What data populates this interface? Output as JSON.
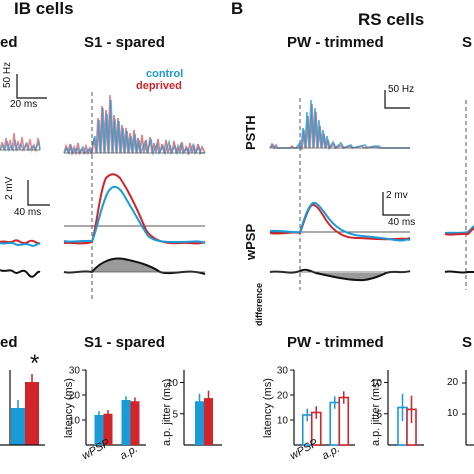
{
  "panel_a": {
    "title": "IB cells",
    "left_title_fragment": "ed",
    "spared_title": "S1 - spared",
    "legend": {
      "control": "control",
      "deprived": "deprived"
    },
    "hz_scale": "50 Hz",
    "ms_scale_psth": "20 ms",
    "mv_scale": "2 mV",
    "ms_scale_wpsp": "40 ms",
    "bottom_title_fragment": "ed",
    "bottom_spared_title": "S1 - spared",
    "significance": "*",
    "latency_label": "latency (ms)",
    "jitter_label": "a.p. jitter (ms)",
    "x_wpsp": "wPSP",
    "x_ap": "a.p.",
    "yticks_latency": [
      "10",
      "20",
      "30"
    ],
    "yticks_jitter": [
      "5",
      "10"
    ],
    "colors": {
      "control": "#1a9ad6",
      "deprived": "#d1252b",
      "difference_fill": "#9a9a9a"
    }
  },
  "panel_b": {
    "letter": "B",
    "title": "RS cells",
    "trimmed_title": "PW - trimmed",
    "right_title_fragment": "S",
    "psth_label": "PSTH",
    "wpsp_label": "wPSP",
    "difference_label": "difference",
    "hz_scale": "50 Hz",
    "mv_scale": "2 mv",
    "ms_scale_wpsp": "40 ms",
    "bottom_trimmed_title": "PW - trimmed",
    "bottom_right_fragment": "S",
    "latency_label": "latency (ms)",
    "jitter_label": "a.p. jitter (ms)",
    "x_wpsp": "wPSP",
    "x_ap": "a.p.",
    "yticks_latency": [
      "10",
      "20",
      "30"
    ],
    "yticks_jitter": [
      "5",
      "10"
    ],
    "yticks_right": [
      "20",
      "10"
    ]
  },
  "chart_data": [
    {
      "type": "bar",
      "panel": "A S1-spared latency",
      "ylabel": "latency (ms)",
      "categories": [
        "wPSP",
        "a.p."
      ],
      "ylim": [
        0,
        30
      ],
      "series": [
        {
          "name": "control",
          "values": [
            12,
            18
          ]
        },
        {
          "name": "deprived",
          "values": [
            12.5,
            17.5
          ]
        }
      ]
    },
    {
      "type": "bar",
      "panel": "A S1-spared jitter",
      "ylabel": "a.p. jitter (ms)",
      "categories": [
        ""
      ],
      "ylim": [
        0,
        12
      ],
      "series": [
        {
          "name": "control",
          "values": [
            7
          ]
        },
        {
          "name": "deprived",
          "values": [
            7.5
          ]
        }
      ]
    },
    {
      "type": "bar",
      "panel": "B PW-trimmed latency",
      "ylabel": "latency (ms)",
      "categories": [
        "wPSP",
        "a.p."
      ],
      "ylim": [
        0,
        30
      ],
      "series": [
        {
          "name": "control",
          "values": [
            12,
            17
          ]
        },
        {
          "name": "deprived",
          "values": [
            13,
            19
          ]
        }
      ]
    },
    {
      "type": "bar",
      "panel": "B PW-trimmed jitter",
      "ylabel": "a.p. jitter (ms)",
      "categories": [
        ""
      ],
      "ylim": [
        0,
        12
      ],
      "series": [
        {
          "name": "control",
          "values": [
            6
          ]
        },
        {
          "name": "deprived",
          "values": [
            5.7
          ]
        }
      ]
    }
  ]
}
